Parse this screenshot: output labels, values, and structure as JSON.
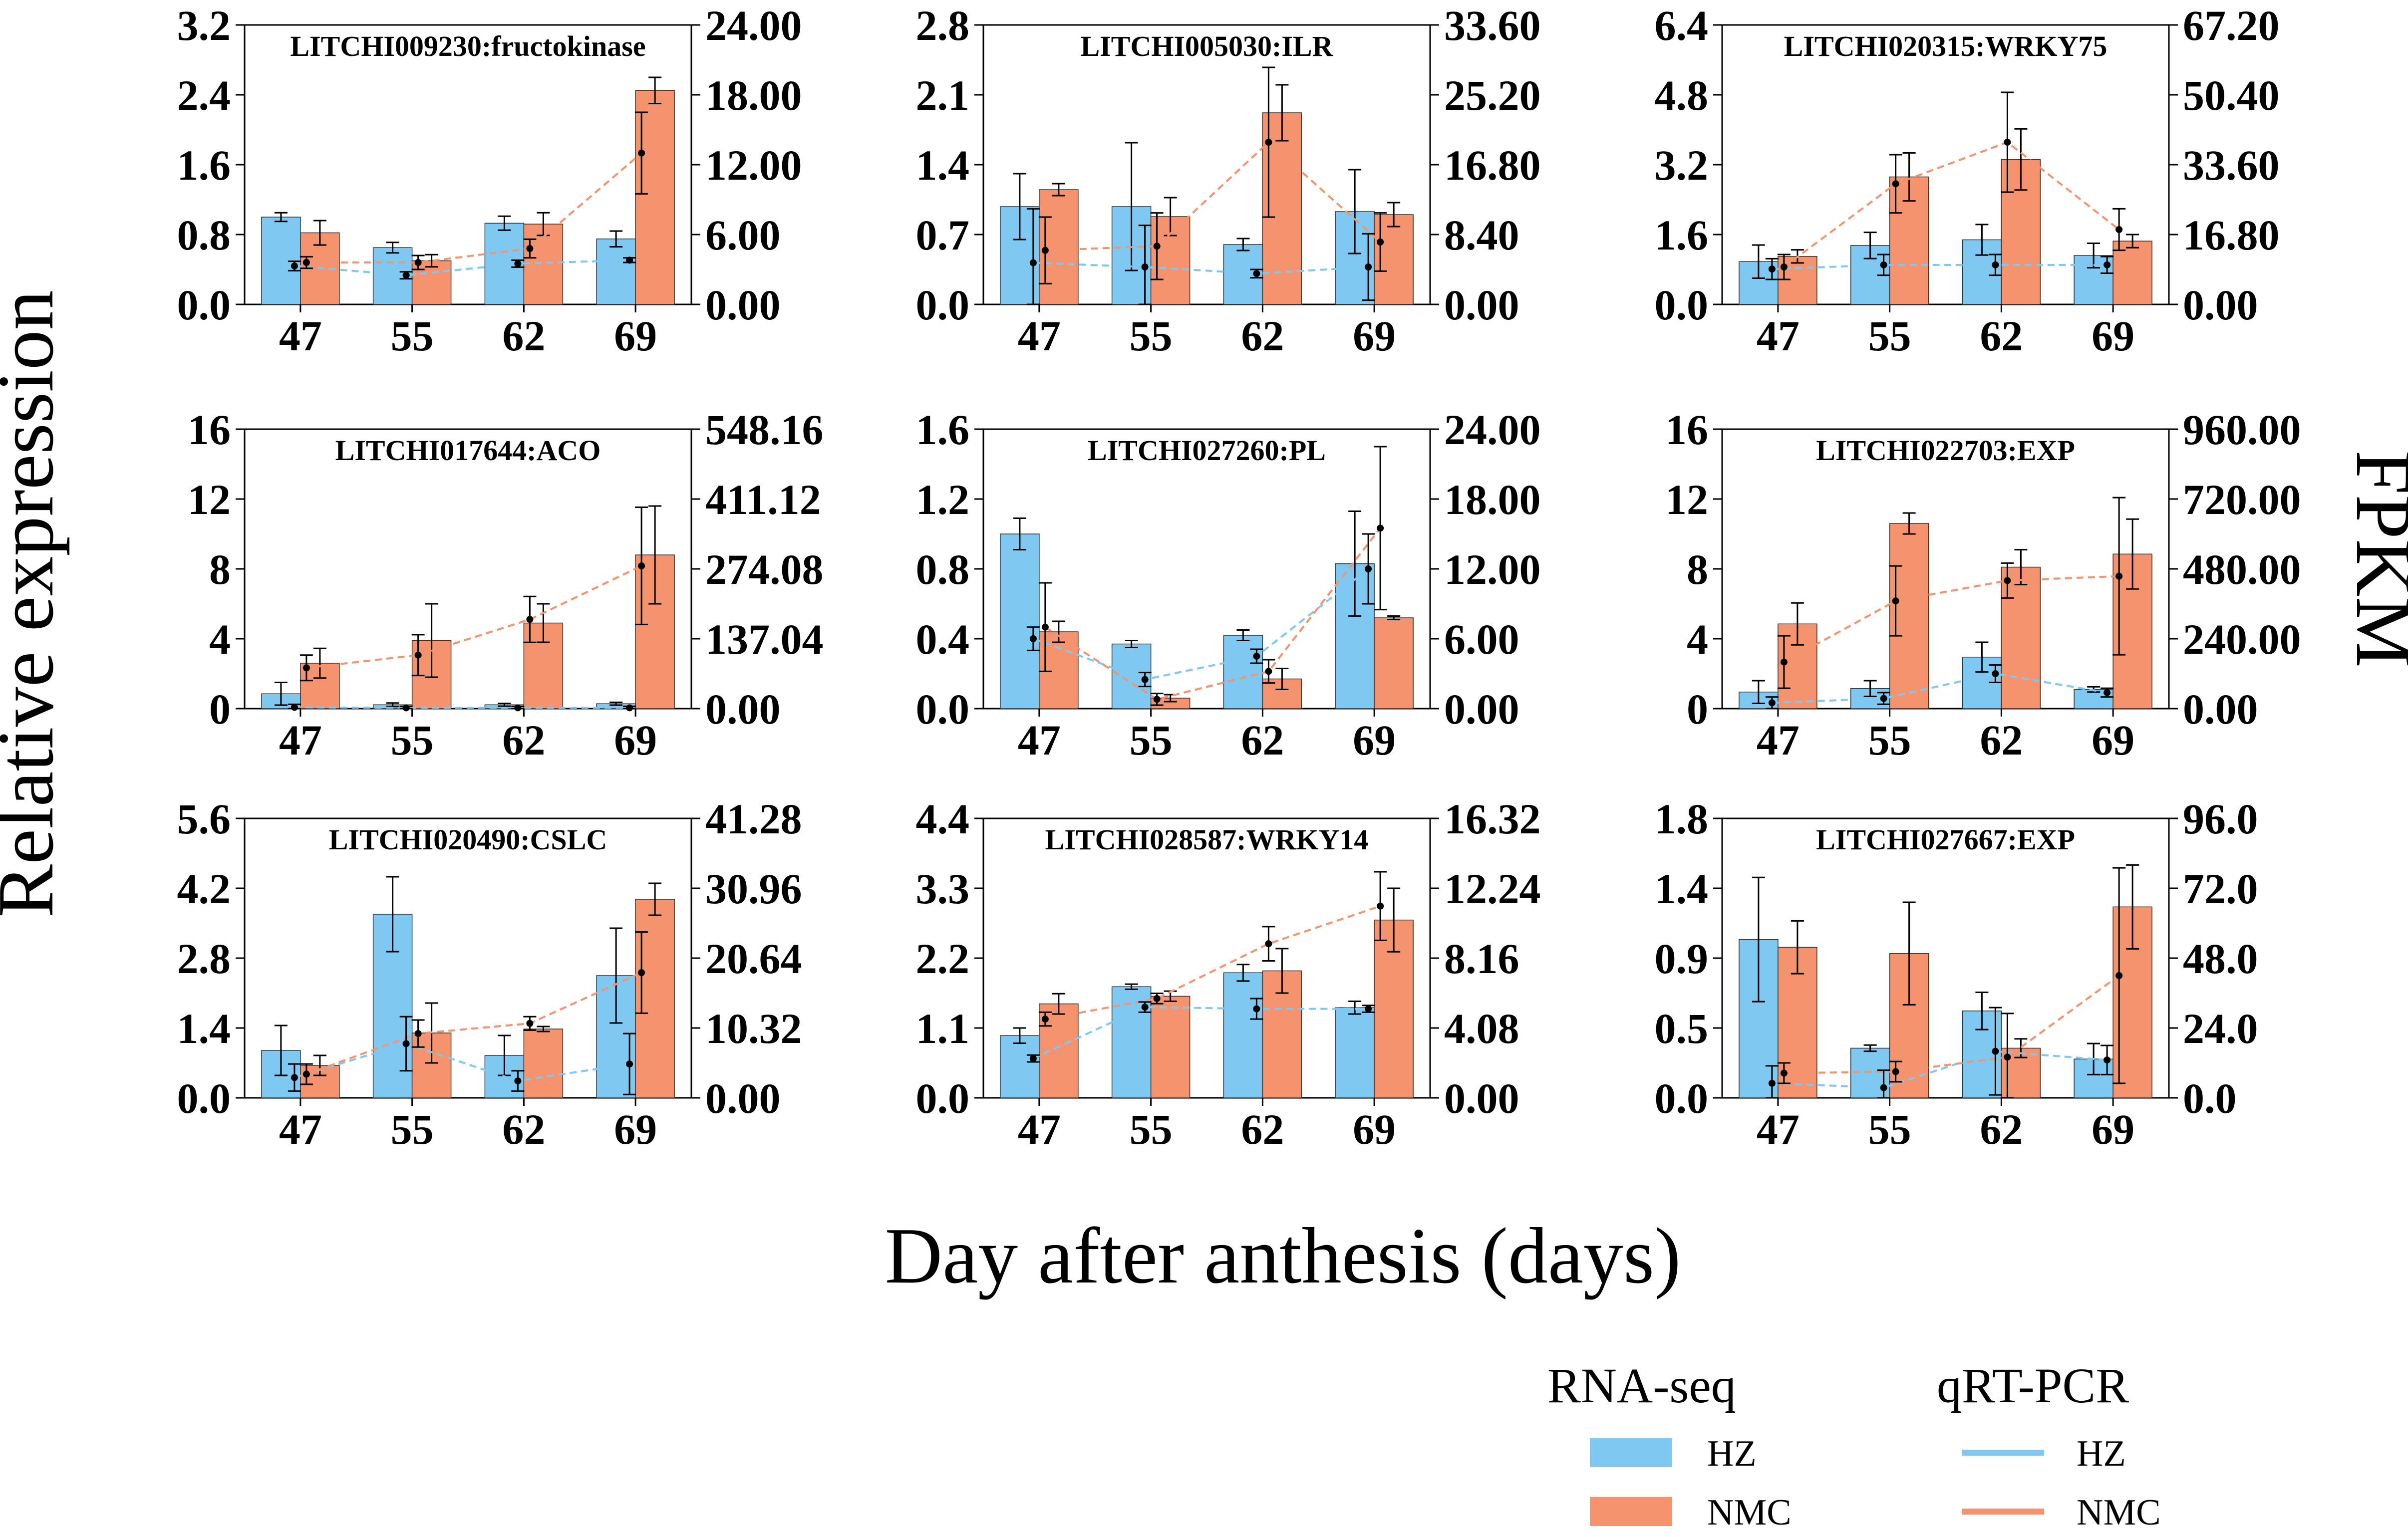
{
  "chart_data": {
    "type": "bar",
    "categories": [
      "47",
      "55",
      "62",
      "69"
    ],
    "xlabel": "Day after anthesis (days)",
    "ylabel_left": "Relative expression",
    "ylabel_right": "FPKM",
    "legend": {
      "rnaseq_title": "RNA-seq",
      "qrt_title": "qRT-PCR",
      "hz_label": "HZ",
      "nmc_label": "NMC",
      "colors": {
        "hz": "#7EC8F2",
        "nmc": "#F5936E",
        "hz_line": "#7EC8F2",
        "nmc_line": "#F5936E"
      }
    },
    "panels": [
      {
        "title": "LITCHI009230:fructokinase",
        "left_ticks": [
          "0.0",
          "0.8",
          "1.6",
          "2.4",
          "3.2"
        ],
        "left_max": 3.2,
        "right_ticks": [
          "0.00",
          "6.00",
          "12.00",
          "18.00",
          "24.00"
        ],
        "right_max": 24,
        "hz_bar": [
          1.0,
          0.65,
          0.93,
          0.75
        ],
        "hz_bar_err": [
          0.05,
          0.06,
          0.08,
          0.09
        ],
        "nmc_bar": [
          0.82,
          0.5,
          0.92,
          2.45
        ],
        "nmc_bar_err": [
          0.14,
          0.07,
          0.13,
          0.15
        ],
        "hz_line": [
          3.3,
          2.5,
          3.5,
          3.8
        ],
        "hz_line_err": [
          0.4,
          0.3,
          0.3,
          0.2
        ],
        "nmc_line": [
          3.6,
          3.6,
          4.8,
          13.0
        ],
        "nmc_line_err": [
          0.5,
          0.6,
          0.8,
          3.5
        ]
      },
      {
        "title": "LITCHI005030:ILR",
        "left_ticks": [
          "0.0",
          "0.7",
          "1.4",
          "2.1",
          "2.8"
        ],
        "left_max": 2.8,
        "right_ticks": [
          "0.00",
          "8.40",
          "16.80",
          "25.20",
          "33.60"
        ],
        "right_max": 33.6,
        "hz_bar": [
          0.98,
          0.98,
          0.6,
          0.93
        ],
        "hz_bar_err": [
          0.33,
          0.64,
          0.06,
          0.42
        ],
        "nmc_bar": [
          1.15,
          0.88,
          1.92,
          0.9
        ],
        "nmc_bar_err": [
          0.06,
          0.19,
          0.28,
          0.12
        ],
        "hz_line": [
          5.0,
          4.5,
          3.7,
          4.5
        ],
        "hz_line_err": [
          6.5,
          5.0,
          0.5,
          4.0
        ],
        "nmc_line": [
          6.5,
          7.0,
          19.5,
          7.5
        ],
        "nmc_line_err": [
          4.0,
          4.0,
          9.0,
          3.5
        ]
      },
      {
        "title": "LITCHI020315:WRKY75",
        "left_ticks": [
          "0.0",
          "1.6",
          "3.2",
          "4.8",
          "6.4"
        ],
        "left_max": 6.4,
        "right_ticks": [
          "0.00",
          "16.80",
          "33.60",
          "50.40",
          "67.20"
        ],
        "right_max": 67.2,
        "hz_bar": [
          0.98,
          1.35,
          1.48,
          1.12
        ],
        "hz_bar_err": [
          0.38,
          0.3,
          0.35,
          0.28
        ],
        "nmc_bar": [
          1.1,
          2.92,
          3.32,
          1.45
        ],
        "nmc_bar_err": [
          0.15,
          0.55,
          0.7,
          0.15
        ],
        "hz_line": [
          8.5,
          9.5,
          9.5,
          9.5
        ],
        "hz_line_err": [
          2.5,
          2.5,
          2.5,
          2.0
        ],
        "nmc_line": [
          9.0,
          29.0,
          39.0,
          18.0
        ],
        "nmc_line_err": [
          3.0,
          7.0,
          12.0,
          5.0
        ]
      },
      {
        "title": "LITCHI017644:ACO",
        "left_ticks": [
          "0",
          "4",
          "8",
          "12",
          "16"
        ],
        "left_max": 16,
        "right_ticks": [
          "0.00",
          "137.04",
          "274.08",
          "411.12",
          "548.16"
        ],
        "right_max": 548.16,
        "hz_bar": [
          0.85,
          0.22,
          0.22,
          0.28
        ],
        "hz_bar_err": [
          0.65,
          0.1,
          0.08,
          0.08
        ],
        "nmc_bar": [
          2.6,
          3.9,
          4.9,
          8.8
        ],
        "nmc_bar_err": [
          0.85,
          2.1,
          1.1,
          2.8
        ],
        "hz_line": [
          2.5,
          1.5,
          1.5,
          1.5
        ],
        "hz_line_err": [
          6.0,
          3.0,
          3.0,
          3.0
        ],
        "nmc_line": [
          80.0,
          105.0,
          175.0,
          280.0
        ],
        "nmc_line_err": [
          25.0,
          40.0,
          45.0,
          115.0
        ]
      },
      {
        "title": "LITCHI027260:PL",
        "left_ticks": [
          "0.0",
          "0.4",
          "0.8",
          "1.2",
          "1.6"
        ],
        "left_max": 1.6,
        "right_ticks": [
          "0.00",
          "6.00",
          "12.00",
          "18.00",
          "24.00"
        ],
        "right_max": 24,
        "hz_bar": [
          1.0,
          0.37,
          0.42,
          0.83
        ],
        "hz_bar_err": [
          0.09,
          0.02,
          0.03,
          0.3
        ],
        "nmc_bar": [
          0.44,
          0.06,
          0.17,
          0.52
        ],
        "nmc_bar_err": [
          0.06,
          0.02,
          0.06,
          0.01
        ],
        "hz_line": [
          6.0,
          2.5,
          4.5,
          12.0
        ],
        "hz_line_err": [
          1.0,
          0.6,
          0.6,
          3.0
        ],
        "nmc_line": [
          7.0,
          0.8,
          3.2,
          15.5
        ],
        "nmc_line_err": [
          3.8,
          0.5,
          1.0,
          7.0
        ]
      },
      {
        "title": "LITCHI022703:EXP",
        "left_ticks": [
          "0",
          "4",
          "8",
          "12",
          "16"
        ],
        "left_max": 16,
        "right_ticks": [
          "0.00",
          "240.00",
          "480.00",
          "720.00",
          "960.00"
        ],
        "right_max": 960,
        "hz_bar": [
          0.95,
          1.15,
          2.95,
          1.1
        ],
        "hz_bar_err": [
          0.65,
          0.45,
          0.85,
          0.15
        ],
        "nmc_bar": [
          4.85,
          10.6,
          8.1,
          8.85
        ],
        "nmc_bar_err": [
          1.2,
          0.6,
          1.0,
          2.0
        ],
        "hz_line": [
          20.0,
          35.0,
          120.0,
          55.0
        ],
        "hz_line_err": [
          20.0,
          20.0,
          30.0,
          15.0
        ],
        "nmc_line": [
          160.0,
          370.0,
          440.0,
          455.0
        ],
        "nmc_line_err": [
          90.0,
          120.0,
          60.0,
          270.0
        ]
      },
      {
        "title": "LITCHI020490:CSLC",
        "left_ticks": [
          "0.0",
          "1.4",
          "2.8",
          "4.2",
          "5.6"
        ],
        "left_max": 5.6,
        "right_ticks": [
          "0.00",
          "10.32",
          "20.64",
          "30.96",
          "41.28"
        ],
        "right_max": 41.28,
        "hz_bar": [
          0.95,
          3.68,
          0.85,
          2.45
        ],
        "hz_bar_err": [
          0.5,
          0.75,
          0.4,
          0.95
        ],
        "nmc_bar": [
          0.65,
          1.3,
          1.38,
          3.98
        ],
        "nmc_bar_err": [
          0.2,
          0.6,
          0.05,
          0.32
        ],
        "hz_line": [
          3.0,
          8.0,
          2.5,
          5.0
        ],
        "hz_line_err": [
          2.0,
          4.0,
          1.5,
          4.5
        ],
        "nmc_line": [
          3.5,
          9.5,
          11.0,
          18.5
        ],
        "nmc_line_err": [
          1.5,
          2.0,
          1.0,
          6.0
        ]
      },
      {
        "title": "LITCHI028587:WRKY14",
        "left_ticks": [
          "0.0",
          "1.1",
          "2.2",
          "3.3",
          "4.4"
        ],
        "left_max": 4.4,
        "right_ticks": [
          "0.00",
          "4.08",
          "8.16",
          "12.24",
          "16.32"
        ],
        "right_max": 16.32,
        "hz_bar": [
          0.98,
          1.75,
          1.97,
          1.42
        ],
        "hz_bar_err": [
          0.12,
          0.04,
          0.13,
          0.1
        ],
        "nmc_bar": [
          1.48,
          1.6,
          2.0,
          2.8
        ],
        "nmc_bar_err": [
          0.16,
          0.08,
          0.35,
          0.5
        ],
        "hz_line": [
          2.3,
          5.3,
          5.2,
          5.2
        ],
        "hz_line_err": [
          0.2,
          0.3,
          0.6,
          0.2
        ],
        "nmc_line": [
          4.6,
          5.8,
          9.0,
          11.2
        ],
        "nmc_line_err": [
          0.4,
          0.3,
          1.0,
          2.0
        ]
      },
      {
        "title": "LITCHI027667:EXP",
        "left_ticks": [
          "0.0",
          "0.5",
          "0.9",
          "1.4",
          "1.8"
        ],
        "left_max": 1.8,
        "right_ticks": [
          "0.0",
          "24.0",
          "48.0",
          "72.0",
          "96.0"
        ],
        "right_max": 96,
        "hz_bar": [
          1.02,
          0.32,
          0.56,
          0.25
        ],
        "hz_bar_err": [
          0.4,
          0.02,
          0.12,
          0.1
        ],
        "nmc_bar": [
          0.97,
          0.93,
          0.32,
          1.23
        ],
        "nmc_bar_err": [
          0.17,
          0.33,
          0.06,
          0.27
        ],
        "hz_line": [
          5.0,
          3.5,
          16.0,
          13.0
        ],
        "hz_line_err": [
          6.0,
          6.0,
          15.0,
          5.0
        ],
        "nmc_line": [
          8.5,
          9.0,
          14.0,
          42.0
        ],
        "nmc_line_err": [
          3.5,
          3.5,
          15.0,
          37.0
        ]
      }
    ]
  }
}
